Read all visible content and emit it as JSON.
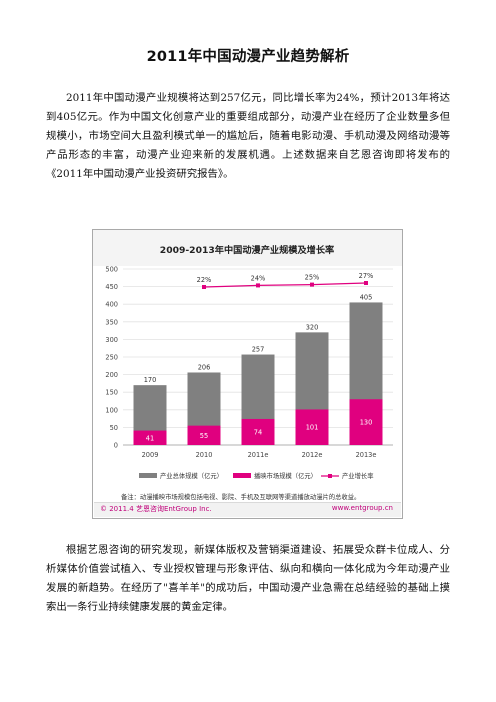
{
  "document": {
    "title": "2011年中国动漫产业趋势解析",
    "paragraphs": [
      "2011年中国动漫产业规模将达到257亿元，同比增长率为24%，预计2013年将达到405亿元。作为中国文化创意产业的重要组成部分，动漫产业在经历了企业数量多但规模小，市场空间大且盈利模式单一的尴尬后，随着电影动漫、手机动漫及网络动漫等产品形态的丰富，动漫产业迎来新的发展机遇。上述数据来自艺恩咨询即将发布的《2011年中国动漫产业投资研究报告》。",
      "根据艺恩咨询的研究发现，新媒体版权及营销渠道建设、拓展受众群卡位成人、分析媒体价值尝试植入、专业授权管理与形象评估、纵向和横向一体化成为今年动漫产业发展的新趋势。在经历了\"喜羊羊\"的成功后，中国动漫产业急需在总结经验的基础上摸索出一条行业持续健康发展的黄金定律。"
    ]
  },
  "chart_data": {
    "type": "bar",
    "title": "2009-2013年中国动漫产业规模及增长率",
    "categories": [
      "2009",
      "2010",
      "2011e",
      "2012e",
      "2013e"
    ],
    "series": [
      {
        "name": "产业总体规模（亿元）",
        "values": [
          170,
          206,
          257,
          320,
          405
        ],
        "color": "#808080"
      },
      {
        "name": "播映市场规模（亿元）",
        "values": [
          41,
          55,
          74,
          101,
          130
        ],
        "color": "#e0007f"
      },
      {
        "name": "产业增长率",
        "values": [
          22,
          24,
          25,
          27
        ],
        "x": [
          "2010",
          "2011e",
          "2012e",
          "2013e"
        ],
        "labels": [
          "22%",
          "24%",
          "25%",
          "27%"
        ],
        "color": "#e0007f",
        "kind": "line"
      }
    ],
    "ylim": [
      0,
      500
    ],
    "yticks": [
      0,
      50,
      100,
      150,
      200,
      250,
      300,
      350,
      400,
      450,
      500
    ],
    "note": "备注：动漫播映市场规模包括电视、影院、手机及互联网等渠道播放动漫片的总收益。",
    "footer_left": "© 2011.4 艺恩咨询EntGroup Inc.",
    "footer_right": "www.entgroup.cn",
    "grid": true,
    "legend_position": "bottom"
  }
}
